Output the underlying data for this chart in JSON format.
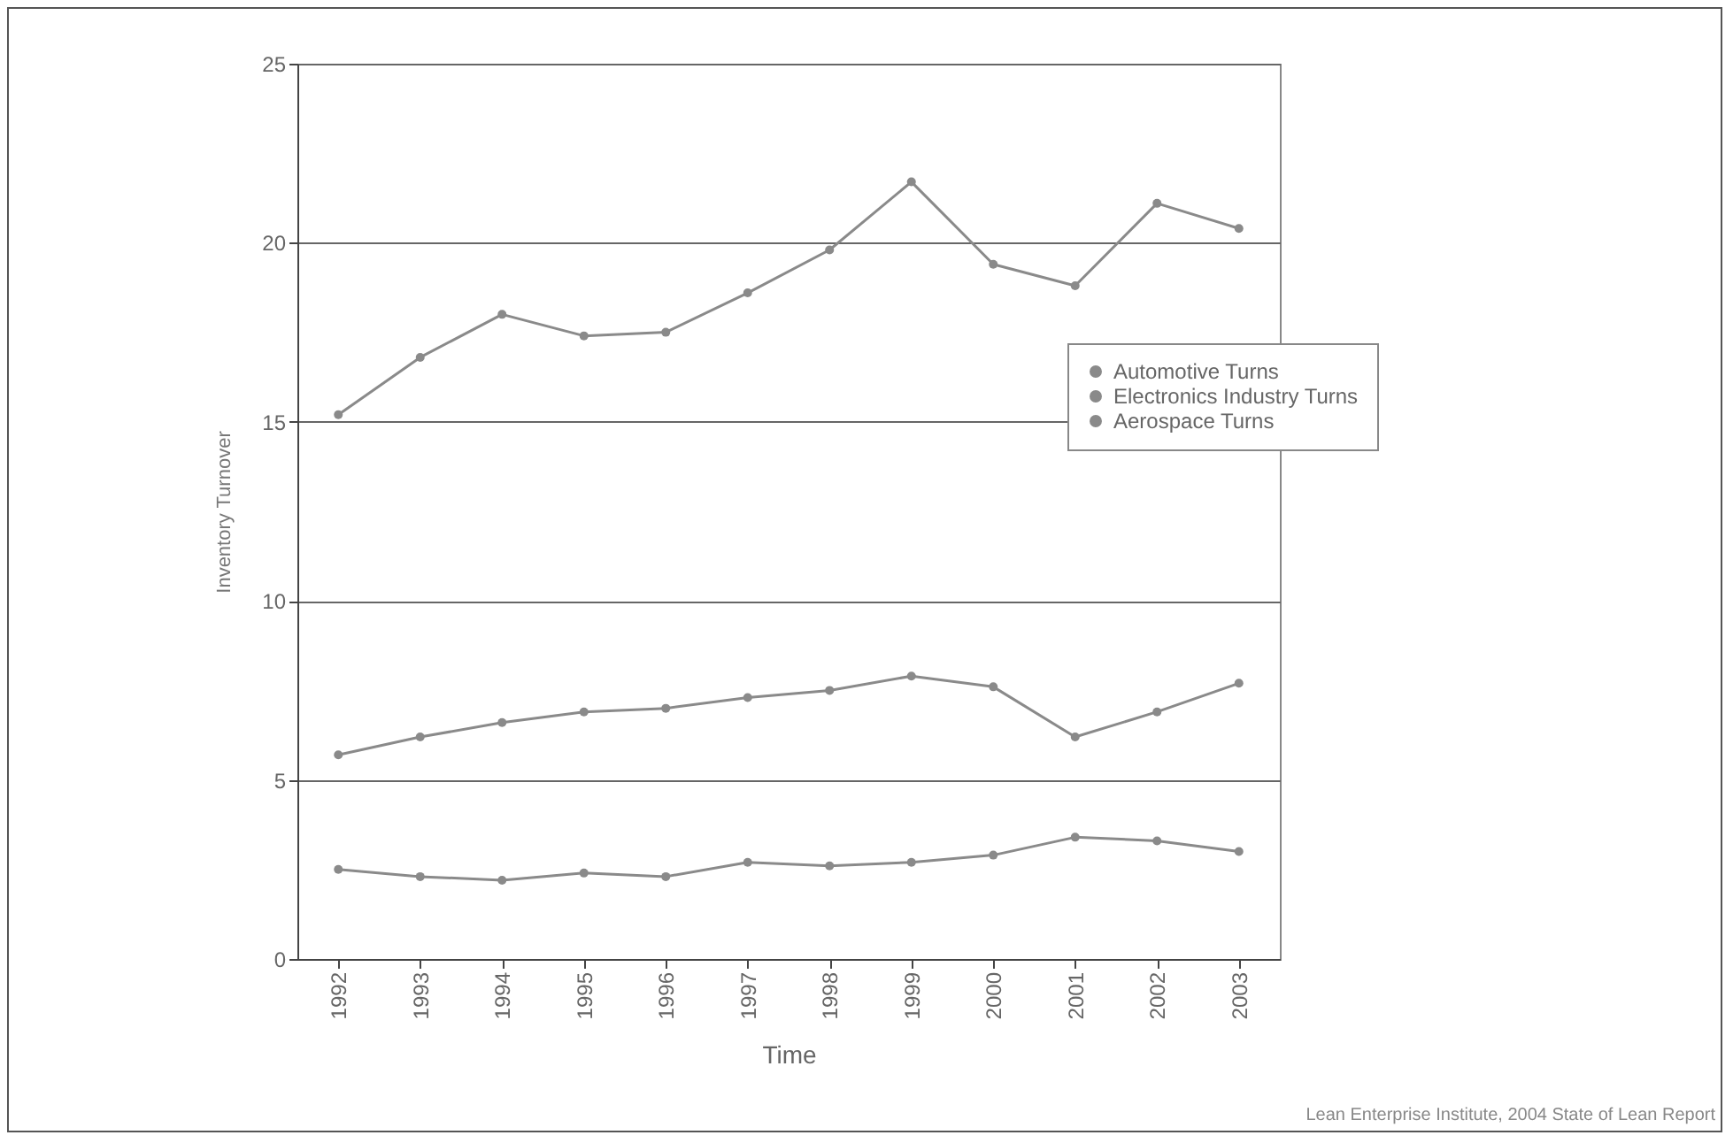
{
  "chart_data": {
    "type": "line",
    "xlabel": "Time",
    "ylabel": "Inventory Turnover",
    "categories": [
      "1992",
      "1993",
      "1994",
      "1995",
      "1996",
      "1997",
      "1998",
      "1999",
      "2000",
      "2001",
      "2002",
      "2003"
    ],
    "series": [
      {
        "name": "Automotive Turns",
        "color": "#8a8a8a",
        "values": [
          15.2,
          16.8,
          18.0,
          17.4,
          17.5,
          18.6,
          19.8,
          21.7,
          19.4,
          18.8,
          21.1,
          20.4
        ]
      },
      {
        "name": "Electronics Industry Turns",
        "color": "#8a8a8a",
        "values": [
          5.7,
          6.2,
          6.6,
          6.9,
          7.0,
          7.3,
          7.5,
          7.9,
          7.6,
          6.2,
          6.9,
          7.7
        ]
      },
      {
        "name": "Aerospace Turns",
        "color": "#8a8a8a",
        "values": [
          2.5,
          2.3,
          2.2,
          2.4,
          2.3,
          2.7,
          2.6,
          2.7,
          2.9,
          3.4,
          3.3,
          3.0
        ]
      }
    ],
    "ylim": [
      0,
      25
    ],
    "yticks": [
      0,
      5,
      10,
      15,
      20,
      25
    ],
    "grid": "y",
    "legend": "right",
    "marker": "circle",
    "line_style": "solid",
    "annotations": [
      "Lean Enterprise Institute, 2004 State of Lean Report"
    ]
  }
}
